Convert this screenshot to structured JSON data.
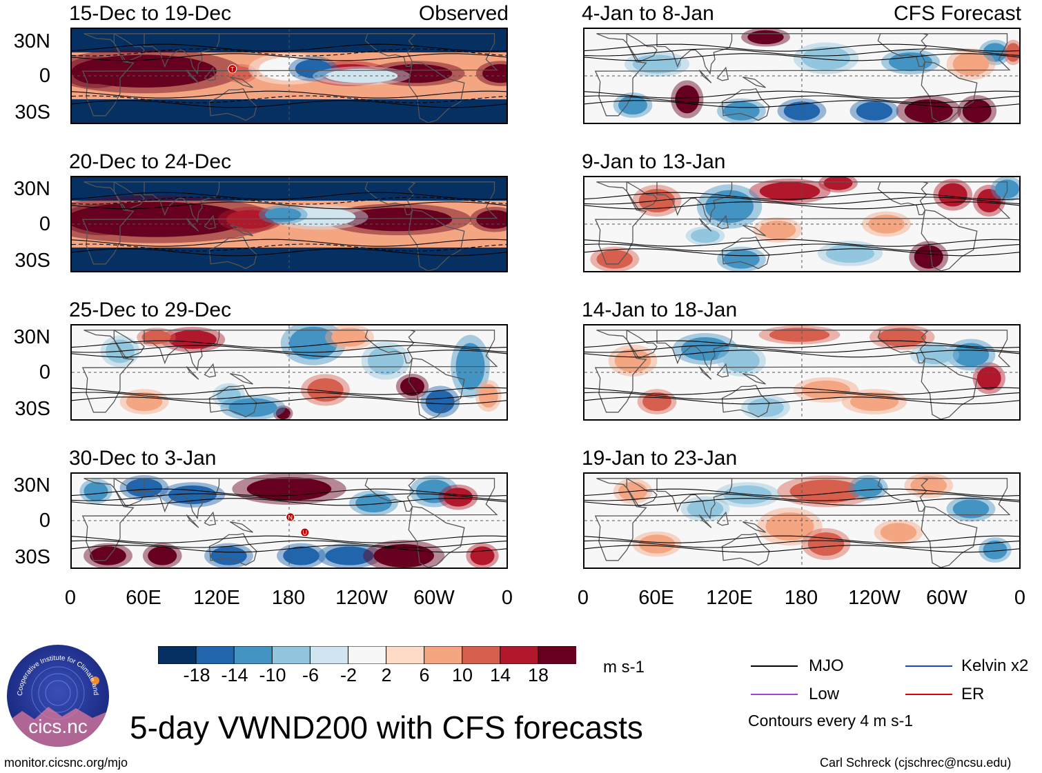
{
  "title": "5-day VWND200 with CFS forecasts",
  "observed_label": "Observed",
  "forecast_label": "CFS Forecast",
  "panels_left": [
    {
      "period": "15-Dec to 19-Dec",
      "markers": [
        {
          "letter": "T",
          "lon": 133,
          "lat": 6
        }
      ]
    },
    {
      "period": "20-Dec to 24-Dec",
      "markers": []
    },
    {
      "period": "25-Dec to 29-Dec",
      "markers": []
    },
    {
      "period": "30-Dec to 3-Jan",
      "markers": [
        {
          "letter": "N",
          "lon": 181,
          "lat": 3
        },
        {
          "letter": "U",
          "lon": 193,
          "lat": -10
        }
      ]
    }
  ],
  "panels_right": [
    {
      "period": "4-Jan to 8-Jan"
    },
    {
      "period": "9-Jan to 13-Jan"
    },
    {
      "period": "14-Jan to 18-Jan"
    },
    {
      "period": "19-Jan to 23-Jan"
    }
  ],
  "lat_labels": [
    "30N",
    "0",
    "30S"
  ],
  "lon_labels": [
    "0",
    "60E",
    "120E",
    "180",
    "120W",
    "60W",
    "0"
  ],
  "colorbar": {
    "tick_labels": [
      "-18",
      "-14",
      "-10",
      "-6",
      "-2",
      "2",
      "6",
      "10",
      "14",
      "18"
    ],
    "colors": [
      "#053061",
      "#2166ac",
      "#4393c3",
      "#92c5de",
      "#d1e5f0",
      "#f7f7f7",
      "#fddbc7",
      "#f4a582",
      "#d6604d",
      "#b2182b",
      "#67001f"
    ],
    "units": "m s-1"
  },
  "legend": {
    "items": [
      {
        "label": "MJO",
        "color": "#000000"
      },
      {
        "label": "Kelvin x2",
        "color": "#1f3fd0"
      },
      {
        "label": "Low",
        "color": "#a040e0"
      },
      {
        "label": "ER",
        "color": "#e00000"
      }
    ],
    "contour_note": "Contours every 4 m s-1"
  },
  "logo_text": {
    "name": "cics.nc",
    "ring": "Cooperative Institute for Climate and Satellites"
  },
  "footer": {
    "left": "monitor.cicsnc.org/mjo",
    "right": "Carl Schreck (cjschrec@ncsu.edu)"
  }
}
